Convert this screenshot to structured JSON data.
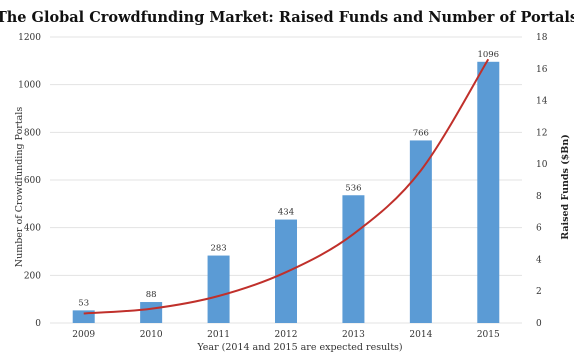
{
  "chart_data": {
    "type": "bar",
    "title": "The Global Crowdfunding Market: Raised Funds and Number of Portals",
    "xlabel": "Year (2014 and 2015 are expected results)",
    "ylabel": "Number of Crowdfunding Portals",
    "y2label": "Raised Funds ($Bn)",
    "categories": [
      "2009",
      "2010",
      "2011",
      "2012",
      "2013",
      "2014",
      "2015"
    ],
    "series": [
      {
        "type": "bar",
        "axis": "left",
        "color": "#5b9bd5",
        "values": [
          53,
          88,
          283,
          434,
          536,
          766,
          1096
        ]
      },
      {
        "type": "line",
        "axis": "right",
        "color": "#c0302b",
        "values": [
          0.6,
          0.9,
          1.7,
          3.2,
          5.6,
          9.6,
          16.6
        ]
      }
    ],
    "ylim": [
      0,
      1200
    ],
    "y_ticks": [
      "0",
      "200",
      "400",
      "600",
      "800",
      "1000",
      "1200"
    ],
    "y2lim": [
      0,
      18
    ],
    "y2_ticks": [
      "0",
      "2",
      "4",
      "6",
      "8",
      "10",
      "12",
      "14",
      "16",
      "18"
    ],
    "grid": true
  }
}
